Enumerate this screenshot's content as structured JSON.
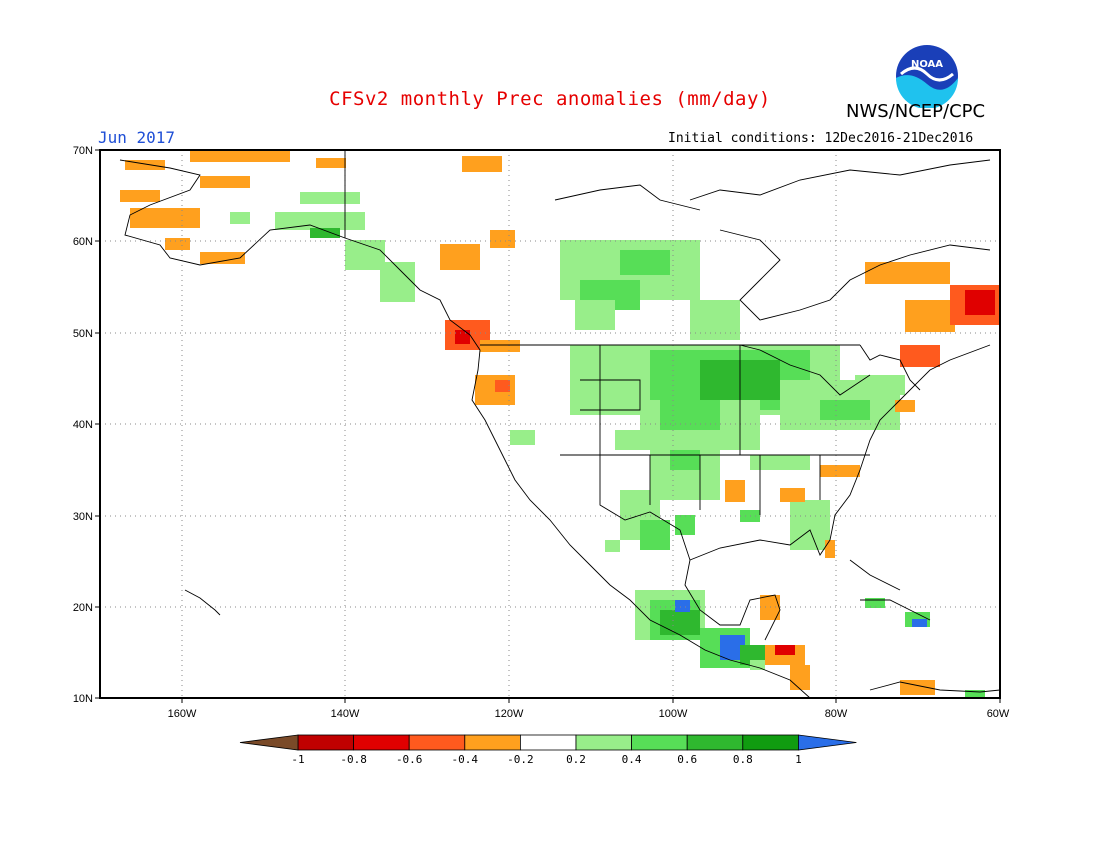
{
  "header": {
    "title": "CFSv2 monthly Prec anomalies (mm/day)",
    "agency": "NWS/NCEP/CPC",
    "month": "Jun 2017",
    "initial_conditions": "Initial conditions: 12Dec2016-21Dec2016",
    "logo_text": "NOAA"
  },
  "map": {
    "lon_labels": [
      "160W",
      "140W",
      "120W",
      "100W",
      "80W",
      "60W"
    ],
    "lat_labels": [
      "70N",
      "60N",
      "50N",
      "40N",
      "30N",
      "20N",
      "10N"
    ],
    "lon_range": [
      -170,
      -60
    ],
    "lat_range": [
      10,
      70
    ]
  },
  "colorbar": {
    "labels": [
      "-1",
      "-0.8",
      "-0.6",
      "-0.4",
      "-0.2",
      "0.2",
      "0.4",
      "0.6",
      "0.8",
      "1"
    ],
    "colors": [
      "#7a4a28",
      "#c00000",
      "#e00000",
      "#ff5a1e",
      "#ffa01e",
      "#ffffff",
      "#98ee8a",
      "#57de57",
      "#2fb82f",
      "#109c10",
      "#2a6ee8"
    ]
  }
}
